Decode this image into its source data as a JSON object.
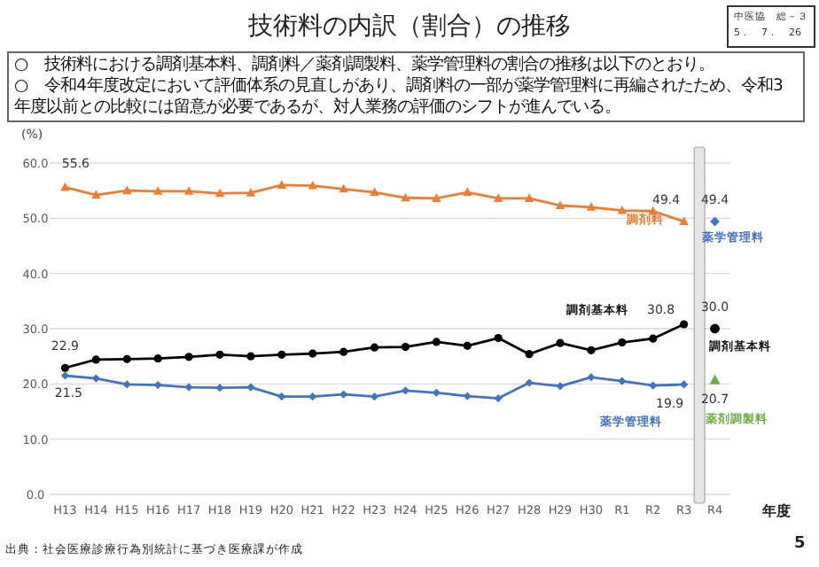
{
  "chart_data": {
    "type": "line",
    "title": "技術料の内訳（割合）の推移",
    "xlabel": "年度",
    "ylabel": "(%)",
    "categories": [
      "H13",
      "H14",
      "H15",
      "H16",
      "H17",
      "H18",
      "H19",
      "H20",
      "H21",
      "H22",
      "H23",
      "H24",
      "H25",
      "H26",
      "H27",
      "H28",
      "H29",
      "H30",
      "R1",
      "R2",
      "R3",
      "R4"
    ],
    "series": [
      {
        "name": "調剤料",
        "color": "#ed7d31",
        "marker": "triangle",
        "values": [
          55.6,
          54.2,
          55.0,
          54.9,
          54.9,
          54.5,
          54.6,
          56.0,
          55.9,
          55.3,
          54.7,
          53.7,
          53.6,
          54.7,
          53.6,
          53.6,
          52.3,
          52.0,
          51.4,
          51.3,
          49.4,
          null
        ],
        "value_labels": [
          "55.6",
          null,
          null,
          null,
          null,
          null,
          null,
          null,
          null,
          null,
          null,
          null,
          null,
          null,
          null,
          null,
          null,
          null,
          null,
          null,
          "49.4",
          null
        ]
      },
      {
        "name": "調剤基本料",
        "color": "#000000",
        "marker": "circle",
        "values": [
          22.9,
          24.4,
          24.5,
          24.6,
          24.9,
          25.3,
          25.0,
          25.3,
          25.5,
          25.8,
          26.6,
          26.7,
          27.6,
          26.9,
          28.3,
          25.4,
          27.4,
          26.1,
          27.5,
          28.2,
          30.8,
          null
        ],
        "value_labels": [
          "22.9",
          null,
          null,
          null,
          null,
          null,
          null,
          null,
          null,
          null,
          null,
          null,
          null,
          null,
          null,
          null,
          null,
          null,
          null,
          null,
          "30.8",
          null
        ]
      },
      {
        "name": "薬学管理料",
        "color": "#4472c4",
        "marker": "diamond",
        "values": [
          21.5,
          21.0,
          19.9,
          19.8,
          19.4,
          19.3,
          19.4,
          17.7,
          17.7,
          18.1,
          17.7,
          18.8,
          18.4,
          17.8,
          17.4,
          20.2,
          19.6,
          21.2,
          20.5,
          19.7,
          19.9,
          null
        ],
        "value_labels": [
          "21.5",
          null,
          null,
          null,
          null,
          null,
          null,
          null,
          null,
          null,
          null,
          null,
          null,
          null,
          null,
          null,
          null,
          null,
          null,
          null,
          "19.9",
          null
        ]
      },
      {
        "name": "薬学管理料",
        "type": "scatter",
        "color": "#4472c4",
        "marker": "diamond",
        "values": [
          null,
          null,
          null,
          null,
          null,
          null,
          null,
          null,
          null,
          null,
          null,
          null,
          null,
          null,
          null,
          null,
          null,
          null,
          null,
          null,
          null,
          49.4
        ],
        "value_labels": [
          null,
          null,
          null,
          null,
          null,
          null,
          null,
          null,
          null,
          null,
          null,
          null,
          null,
          null,
          null,
          null,
          null,
          null,
          null,
          null,
          null,
          "49.4"
        ]
      },
      {
        "name": "調剤基本料",
        "type": "scatter",
        "color": "#000000",
        "marker": "circle",
        "values": [
          null,
          null,
          null,
          null,
          null,
          null,
          null,
          null,
          null,
          null,
          null,
          null,
          null,
          null,
          null,
          null,
          null,
          null,
          null,
          null,
          null,
          30.0
        ],
        "value_labels": [
          null,
          null,
          null,
          null,
          null,
          null,
          null,
          null,
          null,
          null,
          null,
          null,
          null,
          null,
          null,
          null,
          null,
          null,
          null,
          null,
          null,
          "30.0"
        ]
      },
      {
        "name": "薬剤調製料",
        "type": "scatter",
        "color": "#70ad47",
        "marker": "triangle",
        "values": [
          null,
          null,
          null,
          null,
          null,
          null,
          null,
          null,
          null,
          null,
          null,
          null,
          null,
          null,
          null,
          null,
          null,
          null,
          null,
          null,
          null,
          20.7
        ],
        "value_labels": [
          null,
          null,
          null,
          null,
          null,
          null,
          null,
          null,
          null,
          null,
          null,
          null,
          null,
          null,
          null,
          null,
          null,
          null,
          null,
          null,
          null,
          "20.7"
        ]
      }
    ],
    "ylim": [
      0,
      60
    ],
    "yticks": [
      {
        "value": 0,
        "label": "0.0"
      },
      {
        "value": 10,
        "label": "10.0"
      },
      {
        "value": 20,
        "label": "20.0"
      },
      {
        "value": 30,
        "label": "30.0"
      },
      {
        "value": 40,
        "label": "40.0"
      },
      {
        "value": 50,
        "label": "50.0"
      },
      {
        "value": 60,
        "label": "60.0"
      }
    ],
    "grid": "y",
    "legend": false,
    "bands": [
      {
        "axis": "x",
        "from": "R3",
        "to": "R4",
        "color": "#e6e6e6"
      }
    ],
    "annotations": [
      "中医協　総－３",
      "5．　7．　26",
      "○　技術料における調剤基本料、調剤料／薬剤調製料、薬学管理料の割合の推移は以下のとおり。",
      "○　令和4年度改定において評価体系の見直しがあり、調剤料の一部が薬学管理料に再編されたため、令和3年度以前との比較には留意が必要であるが、対人業務の評価のシフトが進んでいる。",
      "出典：社会医療診療行為別統計に基づき医療課が作成",
      "5"
    ]
  }
}
